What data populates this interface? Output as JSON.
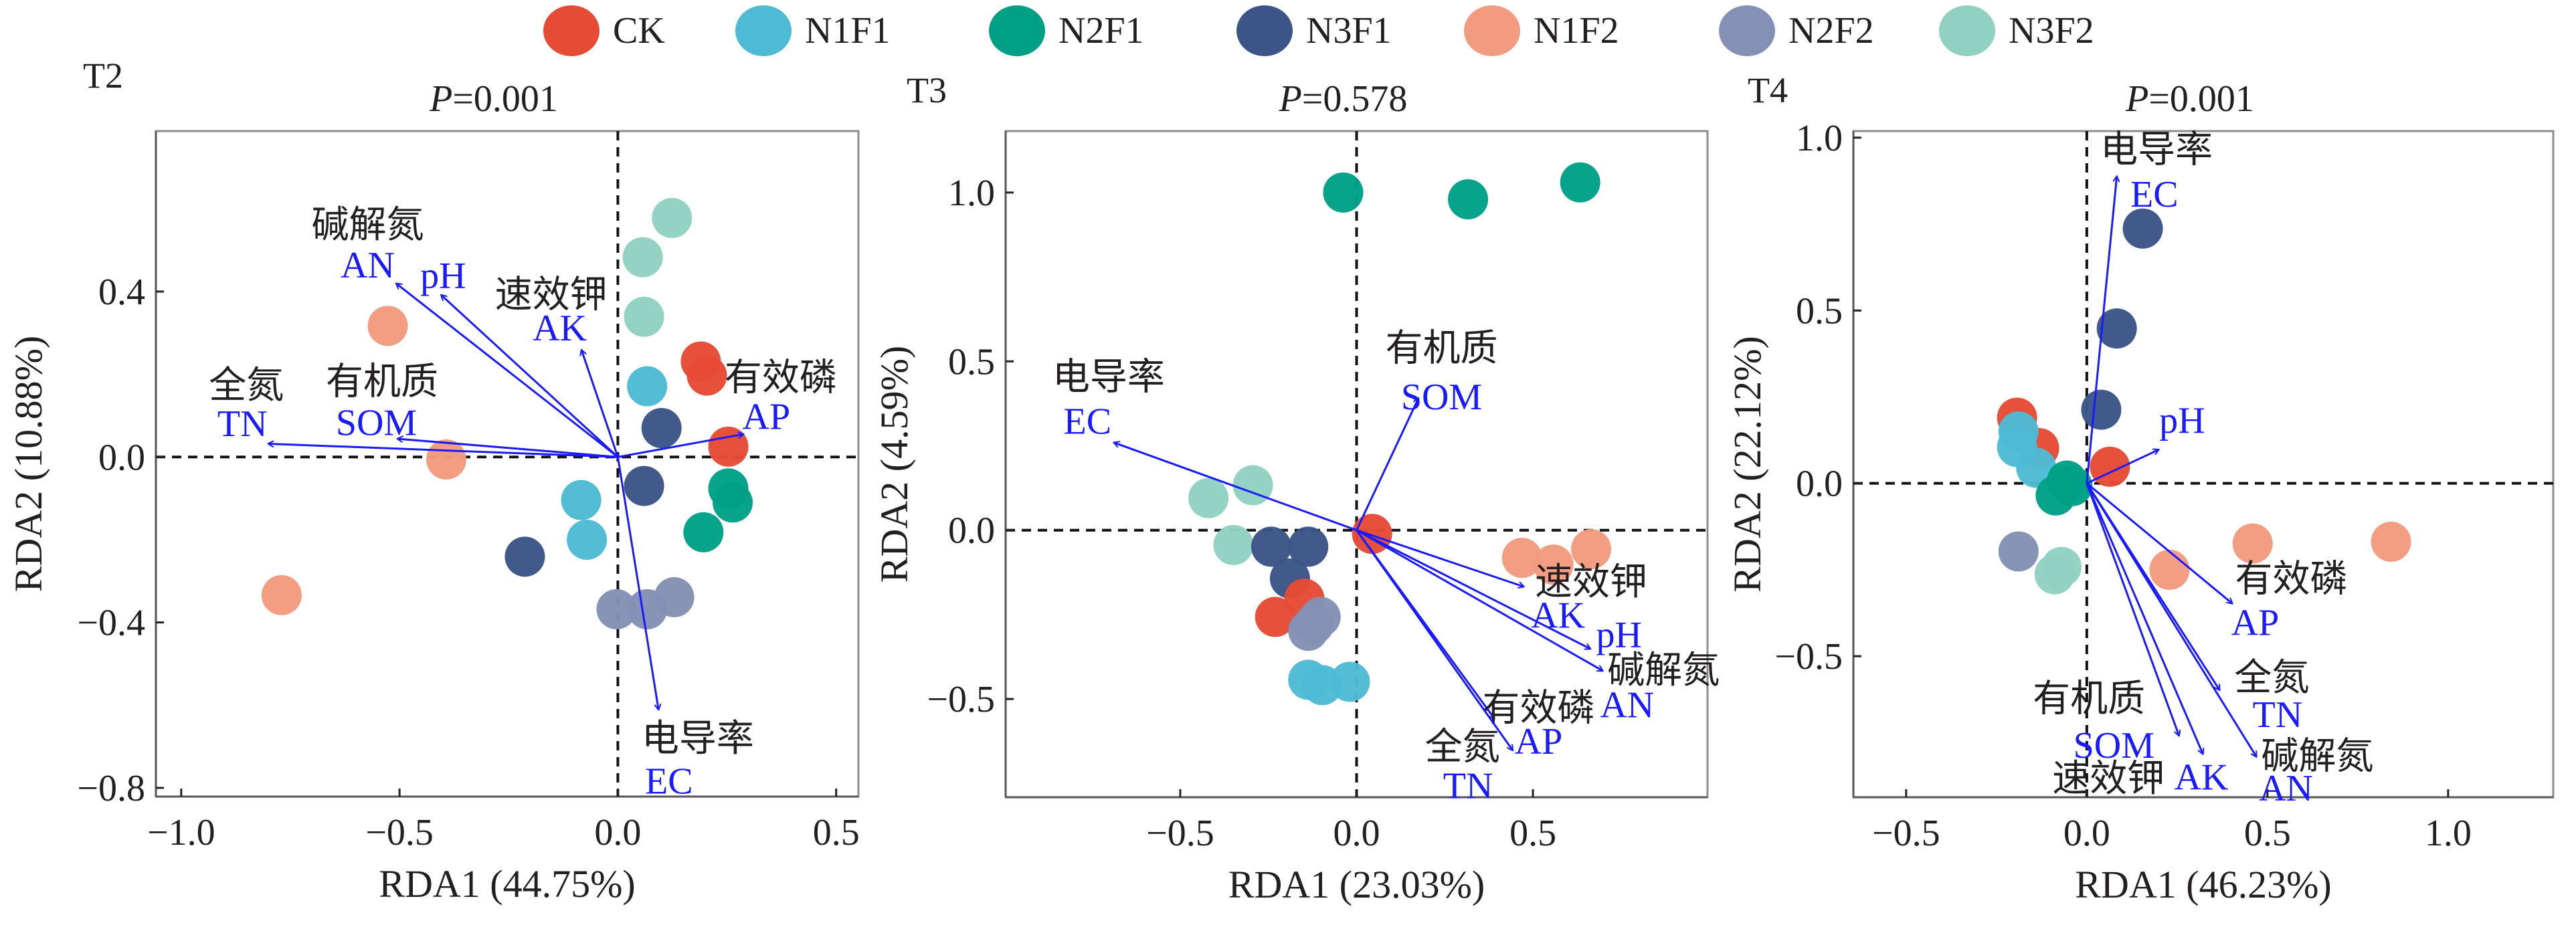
{
  "legend": [
    {
      "name": "CK",
      "color": "#e64b35"
    },
    {
      "name": "N1F1",
      "color": "#4dbbd5"
    },
    {
      "name": "N2F1",
      "color": "#00a087"
    },
    {
      "name": "N3F1",
      "color": "#3c5488"
    },
    {
      "name": "N1F2",
      "color": "#f39b7f"
    },
    {
      "name": "N2F2",
      "color": "#8491b4"
    },
    {
      "name": "N3F2",
      "color": "#91d1c2"
    }
  ],
  "chart_data": [
    {
      "type": "scatter",
      "panel": "T2",
      "title": "P=0.001",
      "p_label": "P",
      "p_value": "=0.001",
      "xlabel": "RDA1 (44.75%)",
      "ylabel": "RDA2 (10.88%)",
      "xlim": [
        -1.058,
        0.551
      ],
      "ylim": [
        -0.821,
        0.788
      ],
      "xticks": [
        -1.0,
        -0.5,
        0.0,
        0.5
      ],
      "xtick_labels": [
        "−1.0",
        "−0.5",
        "0.0",
        "0.5"
      ],
      "yticks": [
        -0.8,
        -0.4,
        0.0,
        0.4
      ],
      "ytick_labels": [
        "−0.8",
        "−0.4",
        "0.0",
        "0.4"
      ],
      "reference_lines": "dashed at x=0 and y=0",
      "series": [
        {
          "name": "N3F2",
          "points": [
            [
              0.124,
              0.578
            ],
            [
              0.057,
              0.483
            ],
            [
              0.06,
              0.339
            ]
          ]
        },
        {
          "name": "CK",
          "points": [
            [
              0.19,
              0.231
            ],
            [
              0.204,
              0.197
            ],
            [
              0.253,
              0.025
            ]
          ]
        },
        {
          "name": "N1F1",
          "points": [
            [
              0.067,
              0.171
            ],
            [
              -0.084,
              -0.104
            ],
            [
              -0.071,
              -0.2
            ]
          ]
        },
        {
          "name": "N3F1",
          "points": [
            [
              0.1,
              0.07
            ],
            [
              0.06,
              -0.07
            ],
            [
              -0.213,
              -0.241
            ]
          ]
        },
        {
          "name": "N2F1",
          "points": [
            [
              0.253,
              -0.076
            ],
            [
              0.263,
              -0.11
            ],
            [
              0.196,
              -0.182
            ]
          ]
        },
        {
          "name": "N1F2",
          "points": [
            [
              -0.527,
              0.317
            ],
            [
              -0.393,
              -0.006
            ],
            [
              -0.77,
              -0.334
            ]
          ]
        },
        {
          "name": "N2F2",
          "points": [
            [
              -0.003,
              -0.368
            ],
            [
              0.067,
              -0.368
            ],
            [
              0.129,
              -0.339
            ]
          ]
        }
      ],
      "arrows": [
        {
          "code": "AN",
          "cn": "碱解氮",
          "end": [
            -0.507,
            0.419
          ],
          "cn_pos": [
            -0.573,
            0.563
          ],
          "code_pos": [
            -0.573,
            0.466
          ]
        },
        {
          "code": "pH",
          "cn": "",
          "end": [
            -0.404,
            0.391
          ],
          "cn_pos": null,
          "code_pos": [
            -0.4,
            0.441
          ]
        },
        {
          "code": "AK",
          "cn": "速效钾",
          "end": [
            -0.083,
            0.258
          ],
          "cn_pos": [
            -0.153,
            0.394
          ],
          "code_pos": [
            -0.133,
            0.314
          ]
        },
        {
          "code": "TN",
          "cn": "全氮",
          "end": [
            -0.8,
            0.032
          ],
          "cn_pos": [
            -0.851,
            0.175
          ],
          "code_pos": [
            -0.86,
            0.083
          ]
        },
        {
          "code": "SOM",
          "cn": "有机质",
          "end": [
            -0.504,
            0.044
          ],
          "cn_pos": [
            -0.54,
            0.184
          ],
          "code_pos": [
            -0.553,
            0.085
          ]
        },
        {
          "code": "AP",
          "cn": "有效磷",
          "end": [
            0.287,
            0.055
          ],
          "cn_pos": [
            0.373,
            0.194
          ],
          "code_pos": [
            0.34,
            0.1
          ]
        },
        {
          "code": "EC",
          "cn": "电导率",
          "end": [
            0.093,
            -0.61
          ],
          "cn_pos": [
            0.183,
            -0.679
          ],
          "code_pos": [
            0.117,
            -0.781
          ]
        }
      ]
    },
    {
      "type": "scatter",
      "panel": "T3",
      "title": "P=0.578",
      "p_label": "P",
      "p_value": "=0.578",
      "xlabel": "RDA1 (23.03%)",
      "ylabel": "RDA2 (4.59%)",
      "xlim": [
        -0.995,
        0.995
      ],
      "ylim": [
        -0.791,
        1.182
      ],
      "xticks": [
        -0.5,
        0.0,
        0.5
      ],
      "xtick_labels": [
        "−0.5",
        "0.0",
        "0.5"
      ],
      "yticks": [
        -0.5,
        0.0,
        0.5,
        1.0
      ],
      "ytick_labels": [
        "−0.5",
        "0.0",
        "0.5",
        "1.0"
      ],
      "reference_lines": "dashed at x=0 and y=0",
      "series": [
        {
          "name": "N2F1",
          "points": [
            [
              -0.038,
              1.0
            ],
            [
              0.316,
              0.98
            ],
            [
              0.634,
              1.03
            ]
          ]
        },
        {
          "name": "N3F2",
          "points": [
            [
              -0.42,
              0.095
            ],
            [
              -0.294,
              0.133
            ],
            [
              -0.349,
              -0.044
            ]
          ]
        },
        {
          "name": "N3F1",
          "points": [
            [
              -0.242,
              -0.049
            ],
            [
              -0.137,
              -0.049
            ],
            [
              -0.189,
              -0.143
            ]
          ]
        },
        {
          "name": "CK",
          "points": [
            [
              0.044,
              -0.011
            ],
            [
              -0.148,
              -0.203
            ],
            [
              -0.231,
              -0.257
            ]
          ]
        },
        {
          "name": "N2F2",
          "points": [
            [
              -0.137,
              -0.298
            ],
            [
              -0.121,
              -0.279
            ],
            [
              -0.102,
              -0.257
            ]
          ]
        },
        {
          "name": "N1F1",
          "points": [
            [
              -0.137,
              -0.443
            ],
            [
              -0.097,
              -0.459
            ],
            [
              -0.019,
              -0.449
            ]
          ]
        },
        {
          "name": "N1F2",
          "points": [
            [
              0.469,
              -0.082
            ],
            [
              0.558,
              -0.102
            ],
            [
              0.665,
              -0.056
            ]
          ]
        }
      ],
      "arrows": [
        {
          "code": "EC",
          "cn": "电导率",
          "end": [
            -0.687,
            0.259
          ],
          "cn_pos": [
            -0.703,
            0.456
          ],
          "code_pos": [
            -0.763,
            0.325
          ]
        },
        {
          "code": "SOM",
          "cn": "有机质",
          "end": [
            0.175,
            0.39
          ],
          "cn_pos": [
            0.241,
            0.541
          ],
          "code_pos": [
            0.241,
            0.398
          ]
        },
        {
          "code": "AK",
          "cn": "速效钾",
          "end": [
            0.473,
            -0.167
          ],
          "cn_pos": [
            0.665,
            -0.151
          ],
          "code_pos": [
            0.571,
            -0.249
          ]
        },
        {
          "code": "pH",
          "cn": "",
          "end": [
            0.662,
            -0.351
          ],
          "cn_pos": null,
          "code_pos": [
            0.744,
            -0.307
          ]
        },
        {
          "code": "AN",
          "cn": "碱解氮",
          "end": [
            0.697,
            -0.416
          ],
          "cn_pos": [
            0.87,
            -0.413
          ],
          "code_pos": [
            0.767,
            -0.515
          ]
        },
        {
          "code": "AP",
          "cn": "有效磷",
          "end": [
            0.39,
            -0.557
          ],
          "cn_pos": [
            0.516,
            -0.525
          ],
          "code_pos": [
            0.516,
            -0.623
          ]
        },
        {
          "code": "TN",
          "cn": "全氮",
          "end": [
            0.442,
            -0.651
          ],
          "cn_pos": [
            0.3,
            -0.639
          ],
          "code_pos": [
            0.316,
            -0.754
          ]
        }
      ]
    },
    {
      "type": "scatter",
      "panel": "T4",
      "title": "P=0.001",
      "p_label": "P",
      "p_value": "=0.001",
      "xlabel": "RDA1 (46.23%)",
      "ylabel": "RDA2 (22.12%)",
      "xlim": [
        -0.646,
        1.291
      ],
      "ylim": [
        -0.908,
        1.019
      ],
      "xticks": [
        -0.5,
        0.0,
        0.5,
        1.0
      ],
      "xtick_labels": [
        "−0.5",
        "0.0",
        "0.5",
        "1.0"
      ],
      "yticks": [
        -0.5,
        0.0,
        0.5,
        1.0
      ],
      "ytick_labels": [
        "−0.5",
        "0.0",
        "0.5",
        "1.0"
      ],
      "reference_lines": "dashed at x=0 and y=0",
      "series": [
        {
          "name": "N3F1",
          "points": [
            [
              0.155,
              0.737
            ],
            [
              0.083,
              0.448
            ],
            [
              0.04,
              0.213
            ]
          ]
        },
        {
          "name": "CK",
          "points": [
            [
              -0.193,
              0.19
            ],
            [
              -0.132,
              0.102
            ],
            [
              0.064,
              0.048
            ]
          ]
        },
        {
          "name": "N1F1",
          "points": [
            [
              -0.189,
              0.15
            ],
            [
              -0.193,
              0.105
            ],
            [
              -0.14,
              0.045
            ]
          ]
        },
        {
          "name": "N2F1",
          "points": [
            [
              -0.055,
              0.008
            ],
            [
              -0.04,
              -0.008
            ],
            [
              -0.086,
              -0.035
            ]
          ]
        },
        {
          "name": "N2F2",
          "points": [
            [
              -0.189,
              -0.197
            ]
          ]
        },
        {
          "name": "N3F2",
          "points": [
            [
              -0.07,
              -0.242
            ],
            [
              -0.089,
              -0.263
            ]
          ]
        },
        {
          "name": "N1F2",
          "points": [
            [
              0.229,
              -0.25
            ],
            [
              0.459,
              -0.174
            ],
            [
              0.842,
              -0.169
            ]
          ]
        }
      ],
      "arrows": [
        {
          "code": "EC",
          "cn": "电导率",
          "end": [
            0.083,
            0.887
          ],
          "cn_pos": [
            0.193,
            0.968
          ],
          "code_pos": [
            0.187,
            0.839
          ]
        },
        {
          "code": "pH",
          "cn": "",
          "end": [
            0.198,
            0.097
          ],
          "cn_pos": null,
          "code_pos": [
            0.264,
            0.185
          ]
        },
        {
          "code": "AP",
          "cn": "有效磷",
          "end": [
            0.402,
            -0.347
          ],
          "cn_pos": [
            0.566,
            -0.274
          ],
          "code_pos": [
            0.466,
            -0.4
          ]
        },
        {
          "code": "TN",
          "cn": "全氮",
          "end": [
            0.367,
            -0.597
          ],
          "cn_pos": [
            0.512,
            -0.56
          ],
          "code_pos": [
            0.528,
            -0.666
          ]
        },
        {
          "code": "AN",
          "cn": "碱解氮",
          "end": [
            0.469,
            -0.79
          ],
          "cn_pos": [
            0.638,
            -0.787
          ],
          "code_pos": [
            0.551,
            -0.879
          ]
        },
        {
          "code": "SOM",
          "cn": "有机质",
          "end": [
            0.255,
            -0.729
          ],
          "cn_pos": [
            0.006,
            -0.621
          ],
          "code_pos": [
            0.075,
            -0.755
          ]
        },
        {
          "code": "AK",
          "cn": "速效钾",
          "end": [
            0.321,
            -0.782
          ],
          "cn_pos": [
            0.06,
            -0.852
          ],
          "code_pos": [
            0.317,
            -0.847
          ]
        }
      ]
    }
  ],
  "colors": {
    "arrow": "#1a1aff",
    "frame": "#8c8c8c",
    "axis_text": "#231f20"
  }
}
